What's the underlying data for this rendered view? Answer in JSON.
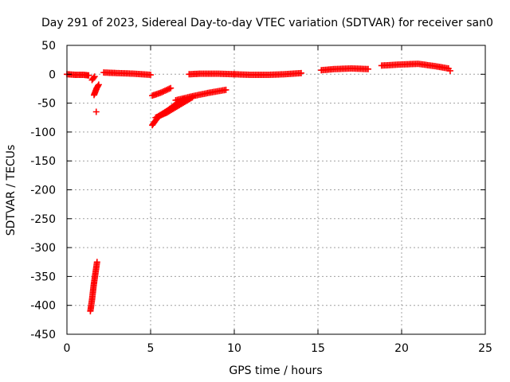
{
  "chart_data": {
    "type": "scatter",
    "title": "Day 291 of 2023, Sidereal Day-to-day VTEC variation (SDTVAR) for receiver san0",
    "xlabel": "GPS time / hours",
    "ylabel": "SDTVAR / TECUs",
    "xlim": [
      0,
      25
    ],
    "ylim": [
      -450,
      50
    ],
    "xticks": [
      0,
      5,
      10,
      15,
      20,
      25
    ],
    "yticks": [
      50,
      0,
      -50,
      -100,
      -150,
      -200,
      -250,
      -300,
      -350,
      -400,
      -450
    ],
    "grid": true,
    "marker": "+",
    "color": "#ff0000",
    "series": [
      {
        "name": "SDTVAR",
        "segments": [
          {
            "x": [
              0.0,
              0.5,
              1.0,
              1.3
            ],
            "y": [
              0,
              -1,
              -1,
              -2
            ]
          },
          {
            "x": [
              1.5,
              1.65
            ],
            "y": [
              -10,
              -4
            ]
          },
          {
            "x": [
              1.62,
              1.7,
              1.78,
              1.9
            ],
            "y": [
              -36,
              -30,
              -24,
              -18
            ]
          },
          {
            "x": [
              1.75
            ],
            "y": [
              -65
            ]
          },
          {
            "x": [
              1.4,
              1.5,
              1.6,
              1.7,
              1.8
            ],
            "y": [
              -410,
              -390,
              -365,
              -345,
              -325
            ]
          },
          {
            "x": [
              2.2,
              3.0,
              4.0,
              5.0
            ],
            "y": [
              3,
              2,
              1,
              -1
            ]
          },
          {
            "x": [
              5.1,
              5.6,
              6.2
            ],
            "y": [
              -37,
              -32,
              -24
            ]
          },
          {
            "x": [
              5.1,
              5.5,
              6.0,
              6.5,
              7.0
            ],
            "y": [
              -88,
              -72,
              -63,
              -52,
              -43
            ]
          },
          {
            "x": [
              5.3,
              6.0,
              6.8,
              7.5
            ],
            "y": [
              -75,
              -66,
              -52,
              -40
            ]
          },
          {
            "x": [
              6.5,
              7.5,
              8.5,
              9.5
            ],
            "y": [
              -45,
              -38,
              -32,
              -27
            ]
          },
          {
            "x": [
              7.3,
              8.0,
              9.0,
              10.0
            ],
            "y": [
              0,
              1,
              1,
              0
            ]
          },
          {
            "x": [
              10.0,
              11.0,
              12.0,
              13.0,
              14.0
            ],
            "y": [
              0,
              -1,
              -1,
              0,
              2
            ]
          },
          {
            "x": [
              15.2,
              16.0,
              17.0,
              18.0
            ],
            "y": [
              7,
              9,
              10,
              9
            ]
          },
          {
            "x": [
              18.8,
              20.0,
              21.0,
              22.0,
              22.8
            ],
            "y": [
              15,
              17,
              18,
              14,
              10
            ]
          },
          {
            "x": [
              22.9
            ],
            "y": [
              6
            ]
          }
        ]
      }
    ]
  }
}
